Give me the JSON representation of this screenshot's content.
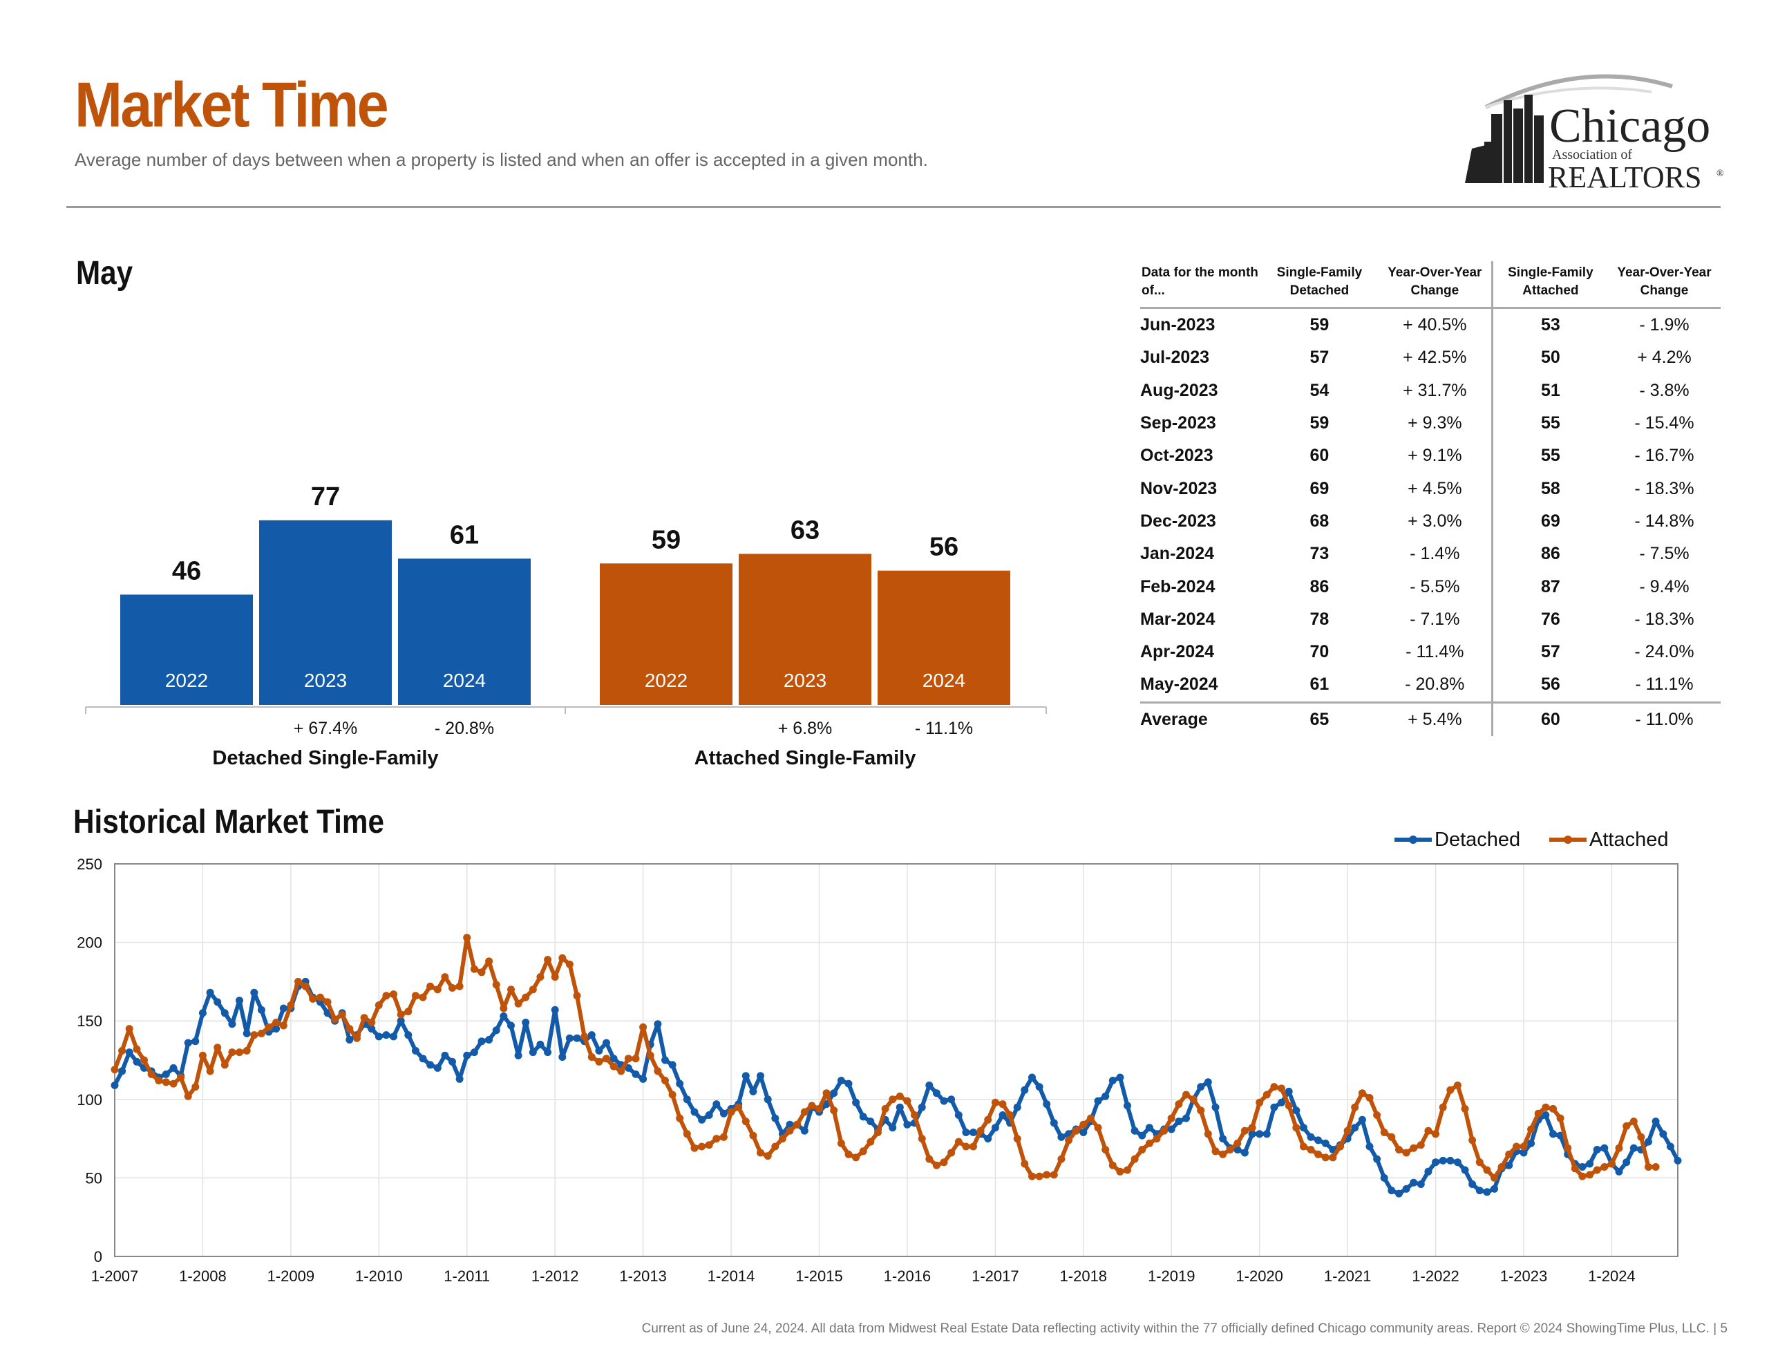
{
  "page": {
    "title": "Market Time",
    "subtitle": "Average number of days between when a property is listed and when an offer is accepted in a given month.",
    "logo": {
      "word1": "Chicago",
      "word2": "Association of",
      "word3": "REALTORS",
      "mark": "®"
    },
    "may_heading": "May",
    "historical_heading": "Historical Market Time",
    "footer": "Current as of June 24, 2024.  All data from Midwest Real Estate Data reflecting activity within the 77 officially defined Chicago community areas. Report © 2024 ShowingTime Plus, LLC.  |  5"
  },
  "colors": {
    "detached": "#135ba9",
    "attached": "#c0530a",
    "title": "#c0530a"
  },
  "chart_data": [
    {
      "type": "bar",
      "title": "May",
      "groups": [
        {
          "name": "Detached Single-Family",
          "color": "#135ba9",
          "bars": [
            {
              "year": "2022",
              "value": 46,
              "change": ""
            },
            {
              "year": "2023",
              "value": 77,
              "change": "+ 67.4%"
            },
            {
              "year": "2024",
              "value": 61,
              "change": "- 20.8%"
            }
          ]
        },
        {
          "name": "Attached Single-Family",
          "color": "#c0530a",
          "bars": [
            {
              "year": "2022",
              "value": 59,
              "change": ""
            },
            {
              "year": "2023",
              "value": 63,
              "change": "+ 6.8%"
            },
            {
              "year": "2024",
              "value": 56,
              "change": "- 11.1%"
            }
          ]
        }
      ]
    },
    {
      "type": "table",
      "columns": [
        "Data for the month of...",
        "Single-Family Detached",
        "Year-Over-Year Change",
        "Single-Family Attached",
        "Year-Over-Year Change"
      ],
      "rows": [
        [
          "Jun-2023",
          "59",
          "+ 40.5%",
          "53",
          "- 1.9%"
        ],
        [
          "Jul-2023",
          "57",
          "+ 42.5%",
          "50",
          "+ 4.2%"
        ],
        [
          "Aug-2023",
          "54",
          "+ 31.7%",
          "51",
          "- 3.8%"
        ],
        [
          "Sep-2023",
          "59",
          "+ 9.3%",
          "55",
          "- 15.4%"
        ],
        [
          "Oct-2023",
          "60",
          "+ 9.1%",
          "55",
          "- 16.7%"
        ],
        [
          "Nov-2023",
          "69",
          "+ 4.5%",
          "58",
          "- 18.3%"
        ],
        [
          "Dec-2023",
          "68",
          "+ 3.0%",
          "69",
          "- 14.8%"
        ],
        [
          "Jan-2024",
          "73",
          "- 1.4%",
          "86",
          "- 7.5%"
        ],
        [
          "Feb-2024",
          "86",
          "- 5.5%",
          "87",
          "- 9.4%"
        ],
        [
          "Mar-2024",
          "78",
          "- 7.1%",
          "76",
          "- 18.3%"
        ],
        [
          "Apr-2024",
          "70",
          "- 11.4%",
          "57",
          "- 24.0%"
        ],
        [
          "May-2024",
          "61",
          "- 20.8%",
          "56",
          "- 11.1%"
        ]
      ],
      "average": [
        "Average",
        "65",
        "+ 5.4%",
        "60",
        "- 11.0%"
      ]
    },
    {
      "type": "line",
      "title": "Historical Market Time",
      "ylim": [
        0,
        250
      ],
      "yticks": [
        0,
        50,
        100,
        150,
        200,
        250
      ],
      "xticks": [
        "1-2007",
        "1-2008",
        "1-2009",
        "1-2010",
        "1-2011",
        "1-2012",
        "1-2013",
        "1-2014",
        "1-2015",
        "1-2016",
        "1-2017",
        "1-2018",
        "1-2019",
        "1-2020",
        "1-2021",
        "1-2022",
        "1-2023",
        "1-2024"
      ],
      "start": "1-2007",
      "grid": true,
      "legend_position": "top-right",
      "series": [
        {
          "name": "Detached",
          "color": "#135ba9",
          "values": [
            109,
            118,
            130,
            124,
            120,
            118,
            114,
            116,
            120,
            115,
            136,
            137,
            155,
            168,
            162,
            155,
            148,
            163,
            142,
            168,
            157,
            143,
            145,
            158,
            158,
            172,
            175,
            165,
            162,
            155,
            150,
            155,
            138,
            141,
            148,
            145,
            140,
            141,
            140,
            150,
            141,
            131,
            126,
            122,
            120,
            128,
            124,
            113,
            128,
            130,
            137,
            138,
            144,
            153,
            147,
            128,
            149,
            130,
            135,
            130,
            157,
            127,
            139,
            139,
            137,
            141,
            131,
            136,
            126,
            122,
            120,
            116,
            113,
            135,
            148,
            125,
            122,
            110,
            100,
            92,
            87,
            90,
            97,
            91,
            94,
            97,
            115,
            105,
            115,
            100,
            88,
            78,
            84,
            84,
            80,
            95,
            92,
            97,
            104,
            112,
            110,
            98,
            89,
            86,
            81,
            87,
            82,
            95,
            84,
            85,
            95,
            109,
            104,
            99,
            100,
            90,
            79,
            79,
            78,
            75,
            82,
            90,
            85,
            95,
            106,
            114,
            108,
            97,
            85,
            76,
            78,
            81,
            79,
            86,
            99,
            102,
            112,
            114,
            96,
            80,
            77,
            82,
            78,
            81,
            81,
            86,
            88,
            100,
            108,
            111,
            95,
            75,
            69,
            68,
            66,
            78,
            78,
            78,
            95,
            98,
            105,
            93,
            82,
            76,
            74,
            72,
            68,
            71,
            75,
            82,
            87,
            70,
            62,
            50,
            42,
            40,
            43,
            47,
            46,
            54,
            60,
            61,
            61,
            60,
            55,
            46,
            42,
            41,
            43,
            56,
            58,
            67,
            66,
            72,
            87,
            90,
            78,
            77,
            65,
            59,
            57,
            59,
            68,
            69,
            59,
            54,
            60,
            69,
            68,
            73,
            86,
            78,
            70,
            61
          ]
        },
        {
          "name": "Attached",
          "color": "#c0530a",
          "values": [
            119,
            131,
            145,
            132,
            125,
            116,
            112,
            111,
            110,
            114,
            102,
            108,
            128,
            118,
            133,
            122,
            130,
            130,
            131,
            141,
            142,
            146,
            149,
            147,
            160,
            175,
            172,
            164,
            165,
            162,
            151,
            154,
            145,
            139,
            152,
            149,
            160,
            166,
            167,
            154,
            156,
            166,
            165,
            172,
            170,
            178,
            171,
            172,
            203,
            183,
            181,
            188,
            173,
            158,
            170,
            161,
            165,
            170,
            178,
            189,
            178,
            190,
            186,
            166,
            140,
            127,
            124,
            126,
            121,
            118,
            126,
            126,
            146,
            128,
            118,
            112,
            103,
            88,
            78,
            69,
            70,
            71,
            75,
            76,
            92,
            95,
            86,
            77,
            66,
            64,
            70,
            75,
            80,
            84,
            92,
            96,
            94,
            104,
            93,
            72,
            65,
            63,
            67,
            73,
            79,
            94,
            100,
            102,
            99,
            90,
            75,
            62,
            58,
            60,
            66,
            73,
            70,
            70,
            80,
            87,
            98,
            97,
            90,
            75,
            59,
            51,
            51,
            52,
            52,
            62,
            74,
            80,
            84,
            88,
            82,
            68,
            58,
            54,
            55,
            62,
            68,
            72,
            75,
            80,
            88,
            97,
            103,
            100,
            93,
            78,
            67,
            65,
            68,
            72,
            80,
            82,
            98,
            103,
            108,
            107,
            96,
            82,
            70,
            68,
            65,
            63,
            63,
            70,
            80,
            95,
            104,
            101,
            90,
            79,
            76,
            68,
            66,
            69,
            71,
            80,
            78,
            95,
            106,
            109,
            94,
            74,
            60,
            55,
            50,
            57,
            65,
            70,
            70,
            81,
            91,
            95,
            94,
            88,
            69,
            56,
            51,
            52,
            55,
            57,
            59,
            69,
            83,
            86,
            76,
            57,
            57
          ]
        }
      ]
    }
  ]
}
